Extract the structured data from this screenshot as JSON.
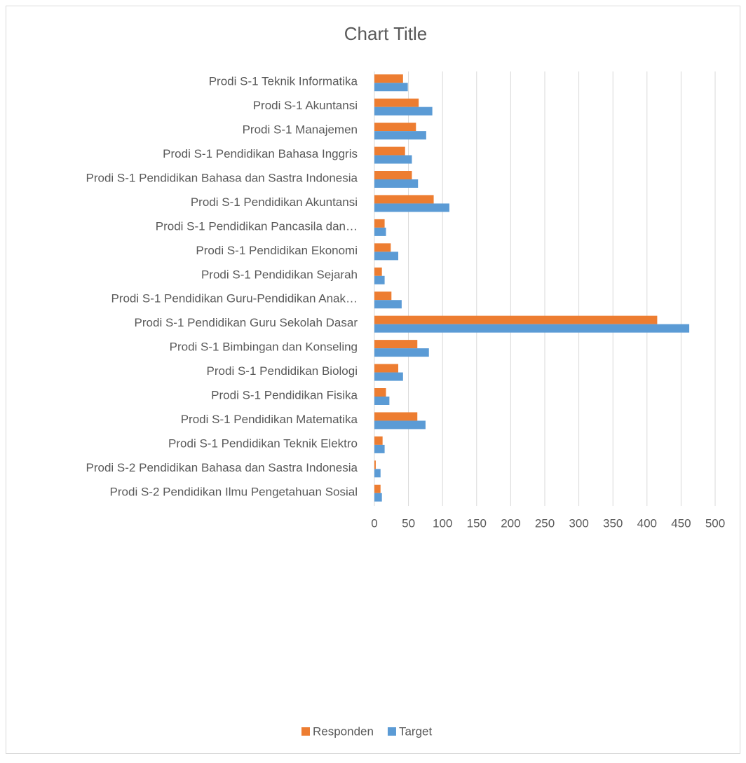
{
  "chart_data": {
    "type": "bar",
    "orientation": "horizontal",
    "title": "Chart Title",
    "categories": [
      "Prodi S-1 Teknik Informatika",
      "Prodi S-1 Akuntansi",
      "Prodi S-1 Manajemen",
      "Prodi S-1 Pendidikan Bahasa Inggris",
      "Prodi S-1 Pendidikan Bahasa dan Sastra Indonesia",
      "Prodi S-1 Pendidikan Akuntansi",
      "Prodi S-1 Pendidikan Pancasila dan…",
      "Prodi S-1 Pendidikan Ekonomi",
      "Prodi S-1 Pendidikan Sejarah",
      "Prodi S-1 Pendidikan Guru-Pendidikan Anak…",
      "Prodi S-1 Pendidikan Guru Sekolah Dasar",
      "Prodi S-1 Bimbingan dan Konseling",
      "Prodi S-1 Pendidikan Biologi",
      "Prodi S-1 Pendidikan Fisika",
      "Prodi S-1 Pendidikan Matematika",
      "Prodi S-1 Pendidikan Teknik Elektro",
      "Prodi S-2 Pendidikan Bahasa dan Sastra Indonesia",
      "Prodi S-2 Pendidikan Ilmu Pengetahuan Sosial"
    ],
    "series": [
      {
        "name": "Responden",
        "color": "#ed7d31",
        "values": [
          42,
          65,
          61,
          45,
          55,
          87,
          15,
          24,
          11,
          25,
          415,
          63,
          35,
          17,
          63,
          12,
          2,
          9
        ]
      },
      {
        "name": "Target",
        "color": "#5b9bd5",
        "values": [
          49,
          85,
          76,
          55,
          64,
          110,
          17,
          35,
          15,
          40,
          462,
          80,
          42,
          22,
          75,
          15,
          9,
          11
        ]
      }
    ],
    "xlim": [
      0,
      500
    ],
    "xticks": [
      0,
      50,
      100,
      150,
      200,
      250,
      300,
      350,
      400,
      450,
      500
    ],
    "grid": true,
    "legend": "bottom"
  }
}
